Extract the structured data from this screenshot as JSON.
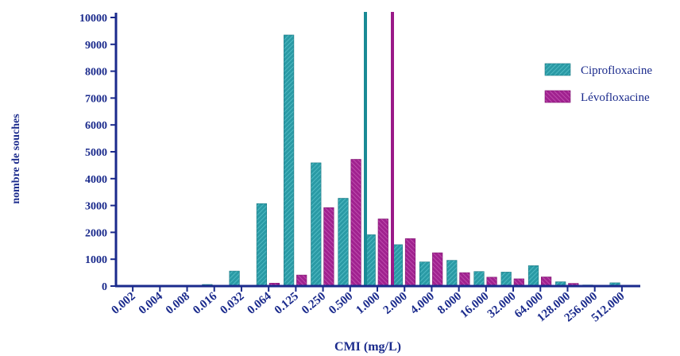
{
  "chart_data": {
    "type": "bar",
    "title": "",
    "xlabel": "CMI (mg/L)",
    "ylabel": "nombre de souches",
    "ylim": [
      0,
      10000
    ],
    "yticks": [
      0,
      1000,
      2000,
      3000,
      4000,
      5000,
      6000,
      7000,
      8000,
      9000,
      10000
    ],
    "categories": [
      "0.002",
      "0.004",
      "0.008",
      "0.016",
      "0.032",
      "0.064",
      "0.125",
      "0.250",
      "0.500",
      "1.000",
      "2.000",
      "4.000",
      "8.000",
      "16.000",
      "32.000",
      "64.000",
      "128.000",
      "256.000",
      "512.000"
    ],
    "series": [
      {
        "name": "Ciprofloxacine",
        "color": "#2a9aa5",
        "values": [
          5,
          10,
          20,
          60,
          560,
          3070,
          9350,
          4590,
          3270,
          1910,
          1540,
          900,
          960,
          540,
          520,
          760,
          160,
          40,
          120
        ]
      },
      {
        "name": "Lévofloxacine",
        "color": "#a0228f",
        "values": [
          5,
          5,
          10,
          20,
          15,
          110,
          410,
          2920,
          4720,
          2500,
          1770,
          1240,
          500,
          330,
          270,
          340,
          100,
          25,
          5
        ]
      }
    ],
    "reference_lines": [
      {
        "series": "Ciprofloxacine",
        "x_position": "between 0.500 and 1.000",
        "color": "#1a8a95"
      },
      {
        "series": "Lévofloxacine",
        "x_position": "between 1.000 and 2.000",
        "color": "#9a1a88"
      }
    ],
    "legend_position": "right",
    "grid": false
  }
}
